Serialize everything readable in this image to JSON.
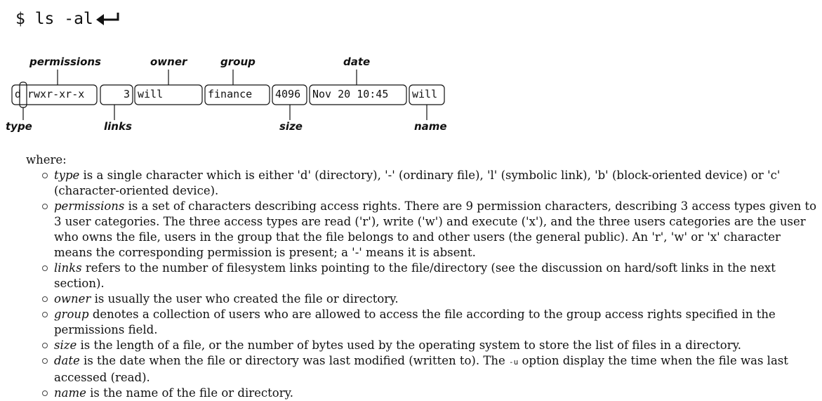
{
  "command": "$ ls -al",
  "diagram": {
    "labels_top": [
      "permissions",
      "owner",
      "group",
      "date"
    ],
    "labels_bottom": [
      "type",
      "links",
      "size",
      "name"
    ],
    "cells": {
      "type_char": "d",
      "permissions": "rwxr-xr-x",
      "links": "3",
      "owner": "will",
      "group": "finance",
      "size": "4096",
      "date": "Nov 20 10:45",
      "name": "will"
    }
  },
  "where_label": "where:",
  "definitions": [
    {
      "term": "type",
      "text": " is a single character which is either 'd' (directory), '-' (ordinary file), 'l' (symbolic link), 'b' (block-oriented device) or 'c' (character-oriented device)."
    },
    {
      "term": "permissions",
      "text": " is a set of characters describing access rights. There are 9 permission characters, describing 3 access types given to 3 user categories. The three access types are read ('r'), write ('w') and execute ('x'), and the three users categories are the user who owns the file, users in the group that the file belongs to and other users (the general public). An 'r', 'w' or 'x' character means the corresponding permission is present; a '-' means it is absent."
    },
    {
      "term": "links",
      "text": " refers to the number of filesystem links pointing to the file/directory (see the discussion on hard/soft links in the next section)."
    },
    {
      "term": "owner",
      "text": " is usually the user who created the file or directory."
    },
    {
      "term": "group",
      "text": " denotes a collection of users who are allowed to access the file according to the group access rights specified in the permissions field."
    },
    {
      "term": "size",
      "text": " is the length of a file, or the number of bytes used by the operating system to store the list of files in a directory."
    },
    {
      "term": "date",
      "text": " is the date when the file or directory was last modified (written to). The ",
      "option": "-u",
      "text2": " option display the time when the file was last accessed (read)."
    },
    {
      "term": "name",
      "text": " is the name of the file or directory."
    }
  ]
}
